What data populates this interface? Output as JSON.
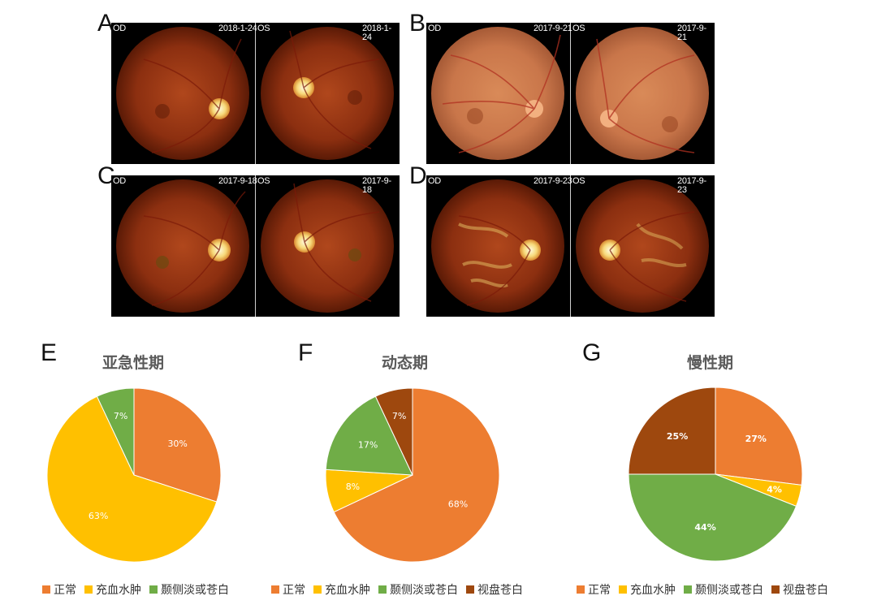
{
  "fundus_panels": [
    {
      "letter": "A",
      "od_label": "OD",
      "od_date": "2018-1-24",
      "os_label": "OS",
      "os_date": "2018-1-24",
      "tone": "dark"
    },
    {
      "letter": "B",
      "od_label": "OD",
      "od_date": "2017-9-21",
      "os_label": "OS",
      "os_date": "2017-9-21",
      "tone": "light"
    },
    {
      "letter": "C",
      "od_label": "OD",
      "od_date": "2017-9-18",
      "os_label": "OS",
      "os_date": "2017-9-18",
      "tone": "dark"
    },
    {
      "letter": "D",
      "od_label": "OD",
      "od_date": "2017-9-23",
      "os_label": "OS",
      "os_date": "2017-9-23",
      "tone": "dark"
    }
  ],
  "legend_labels": {
    "normal": "正常",
    "congestion": "充血水肿",
    "temporal_pallor": "颞侧淡或苍白",
    "disc_pallor": "视盘苍白"
  },
  "chart_data": [
    {
      "type": "pie",
      "panel_letter": "E",
      "title": "亚急性期",
      "slices": [
        {
          "label": "正常",
          "value": 30,
          "display": "30%",
          "color": "#ED7D31"
        },
        {
          "label": "充血水肿",
          "value": 63,
          "display": "63%",
          "color": "#FFC000"
        },
        {
          "label": "颞侧淡或苍白",
          "value": 7,
          "display": "7%",
          "color": "#70AD47"
        }
      ]
    },
    {
      "type": "pie",
      "panel_letter": "F",
      "title": "动态期",
      "slices": [
        {
          "label": "正常",
          "value": 68,
          "display": "68%",
          "color": "#ED7D31"
        },
        {
          "label": "充血水肿",
          "value": 8,
          "display": "8%",
          "color": "#FFC000"
        },
        {
          "label": "颞侧淡或苍白",
          "value": 17,
          "display": "17%",
          "color": "#70AD47"
        },
        {
          "label": "视盘苍白",
          "value": 7,
          "display": "7%",
          "color": "#9E480E"
        }
      ]
    },
    {
      "type": "pie",
      "panel_letter": "G",
      "title": "慢性期",
      "slices": [
        {
          "label": "正常",
          "value": 27,
          "display": "27%",
          "color": "#ED7D31"
        },
        {
          "label": "充血水肿",
          "value": 4,
          "display": "4%",
          "color": "#FFC000"
        },
        {
          "label": "颞侧淡或苍白",
          "value": 44,
          "display": "44%",
          "color": "#70AD47"
        },
        {
          "label": "视盘苍白",
          "value": 25,
          "display": "25%",
          "color": "#9E480E"
        }
      ]
    }
  ]
}
